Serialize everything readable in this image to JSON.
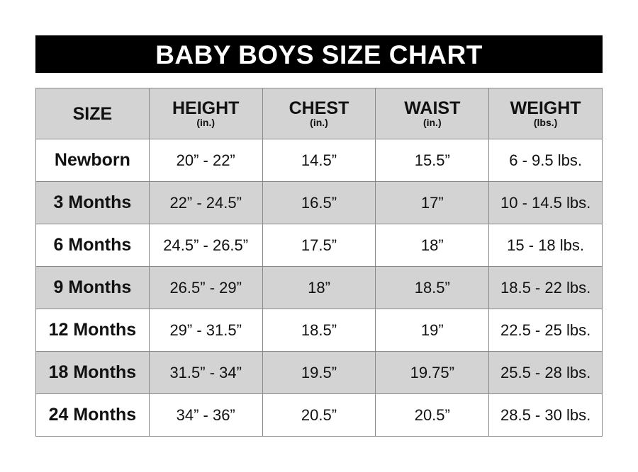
{
  "title": "BABY BOYS SIZE CHART",
  "columns": [
    {
      "label": "SIZE",
      "unit": ""
    },
    {
      "label": "HEIGHT",
      "unit": "(in.)"
    },
    {
      "label": "CHEST",
      "unit": "(in.)"
    },
    {
      "label": "WAIST",
      "unit": "(in.)"
    },
    {
      "label": "WEIGHT",
      "unit": "(lbs.)"
    }
  ],
  "rows": [
    [
      "Newborn",
      "20” - 22”",
      "14.5”",
      "15.5”",
      "6 - 9.5 lbs."
    ],
    [
      "3 Months",
      "22” - 24.5”",
      "16.5”",
      "17”",
      "10 - 14.5 lbs."
    ],
    [
      "6 Months",
      "24.5” - 26.5”",
      "17.5”",
      "18”",
      "15 - 18 lbs."
    ],
    [
      "9 Months",
      "26.5” - 29”",
      "18”",
      "18.5”",
      "18.5 - 22 lbs."
    ],
    [
      "12 Months",
      "29” - 31.5”",
      "18.5”",
      "19”",
      "22.5 - 25 lbs."
    ],
    [
      "18 Months",
      "31.5” - 34”",
      "19.5”",
      "19.75”",
      "25.5 - 28 lbs."
    ],
    [
      "24 Months",
      "34” - 36”",
      "20.5”",
      "20.5”",
      "28.5 - 30 lbs."
    ]
  ],
  "colors": {
    "title_bg": "#000000",
    "header_bg": "#d3d3d4",
    "alt_row_bg": "#d3d3d4"
  }
}
